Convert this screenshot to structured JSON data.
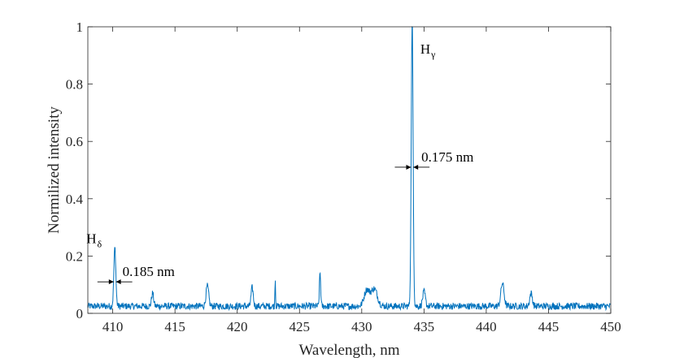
{
  "chart_data": {
    "type": "line",
    "title": "",
    "xlabel": "Wavelength, nm",
    "ylabel": "Normilized intensity",
    "xlim": [
      408,
      450
    ],
    "ylim": [
      0,
      1
    ],
    "xticks": [
      410,
      415,
      420,
      425,
      430,
      435,
      440,
      445,
      450
    ],
    "yticks": [
      0,
      0.2,
      0.4,
      0.6,
      0.8,
      1
    ],
    "ytick_labels": [
      "0",
      "0.2",
      "0.4",
      "0.6",
      "0.8",
      "1"
    ],
    "grid": false,
    "legend": "none",
    "series": [
      {
        "color": "#0072BD",
        "peaks": [
          {
            "center": 410.17,
            "height": 0.205,
            "fwhm": 0.185
          },
          {
            "center": 434.05,
            "height": 1.0,
            "fwhm": 0.175
          },
          {
            "center": 426.65,
            "height": 0.118,
            "fwhm": 0.12
          },
          {
            "center": 423.05,
            "height": 0.1,
            "fwhm": 0.06
          },
          {
            "center": 441.3,
            "height": 0.08,
            "fwhm": 0.3
          },
          {
            "center": 431.0,
            "height": 0.06,
            "fwhm": 0.6
          },
          {
            "center": 430.4,
            "height": 0.055,
            "fwhm": 0.5
          },
          {
            "center": 417.6,
            "height": 0.07,
            "fwhm": 0.25
          },
          {
            "center": 421.2,
            "height": 0.065,
            "fwhm": 0.2
          },
          {
            "center": 435.0,
            "height": 0.05,
            "fwhm": 0.25
          },
          {
            "center": 413.2,
            "height": 0.045,
            "fwhm": 0.2
          },
          {
            "center": 443.6,
            "height": 0.045,
            "fwhm": 0.25
          }
        ],
        "baseline": 0.025,
        "noise": 0.012
      }
    ],
    "annotations": [
      {
        "label": "H",
        "subscript": "δ",
        "x": 410.17,
        "y": 0.205
      },
      {
        "label": "H",
        "subscript": "γ",
        "x": 434.05,
        "y": 1.0
      },
      {
        "label": "0.185 nm",
        "x": 410.17,
        "y": 0.11,
        "type": "fwhm"
      },
      {
        "label": "0.175 nm",
        "x": 434.05,
        "y": 0.51,
        "type": "fwhm"
      }
    ]
  }
}
